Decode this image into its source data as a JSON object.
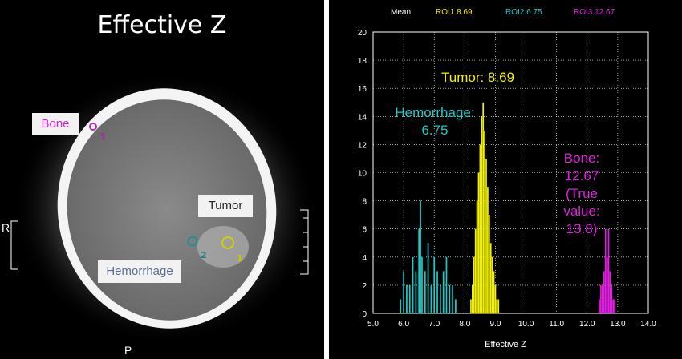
{
  "left_panel": {
    "title": "Effective Z",
    "labels": {
      "bone": "Bone",
      "tumor": "Tumor",
      "hemorrhage": "Hemorrhage"
    },
    "roi_numbers": {
      "roi1": "1",
      "roi2": "2",
      "roi3": "3"
    },
    "orientation": {
      "right": "R",
      "posterior": "P"
    }
  },
  "right_panel": {
    "legend": {
      "mean_label": "Mean",
      "roi1": "ROI1  8.69",
      "roi2": "ROI2  6.75",
      "roi3": "ROI3  12.67"
    },
    "annotations": {
      "tumor": "Tumor: 8.69",
      "hemorrhage_line1": "Hemorrhage:",
      "hemorrhage_line2": "6.75",
      "bone_line1": "Bone: 12.67",
      "bone_line2": "(True value:",
      "bone_line3": "13.8)"
    },
    "xlabel": "Effective Z"
  },
  "colors": {
    "tumor": "#f0f000",
    "hemorrhage": "#20c8c8",
    "bone": "#e020e0",
    "grid": "#ffffff"
  },
  "chart_data": {
    "type": "bar",
    "xlabel": "Effective Z",
    "ylabel": "",
    "xlim": [
      5.0,
      14.0
    ],
    "ylim": [
      0,
      20
    ],
    "x_ticks": [
      "5.0",
      "6.0",
      "7.0",
      "8.0",
      "9.0",
      "10.0",
      "11.0",
      "12.0",
      "13.0",
      "14.0"
    ],
    "y_ticks": [
      "0",
      "2",
      "4",
      "6",
      "8",
      "10",
      "12",
      "14",
      "16",
      "18",
      "20"
    ],
    "grid": true,
    "series": [
      {
        "name": "ROI1",
        "color": "#f0f000",
        "x": [
          8.2,
          8.25,
          8.3,
          8.35,
          8.4,
          8.45,
          8.5,
          8.55,
          8.6,
          8.65,
          8.7,
          8.75,
          8.8,
          8.85,
          8.9,
          8.95,
          9.0,
          9.05,
          9.1
        ],
        "values": [
          1,
          2,
          4,
          6,
          8,
          10,
          12,
          14,
          15,
          13,
          11,
          9,
          7,
          5,
          4,
          3,
          2,
          1,
          1
        ]
      },
      {
        "name": "ROI2",
        "color": "#20c8c8",
        "x": [
          5.9,
          6.0,
          6.1,
          6.2,
          6.3,
          6.4,
          6.5,
          6.55,
          6.6,
          6.7,
          6.8,
          6.9,
          7.0,
          7.1,
          7.2,
          7.3,
          7.4,
          7.5,
          7.6,
          7.7
        ],
        "values": [
          1,
          3,
          2,
          2,
          4,
          3,
          6,
          8,
          4,
          3,
          5,
          2,
          4,
          3,
          2,
          3,
          4,
          2,
          2,
          1
        ]
      },
      {
        "name": "ROI3",
        "color": "#e020e0",
        "x": [
          12.4,
          12.45,
          12.5,
          12.55,
          12.6,
          12.65,
          12.7,
          12.75,
          12.8,
          12.85,
          12.9
        ],
        "values": [
          1,
          2,
          2,
          3,
          6,
          4,
          6,
          3,
          2,
          1,
          1
        ]
      }
    ]
  }
}
